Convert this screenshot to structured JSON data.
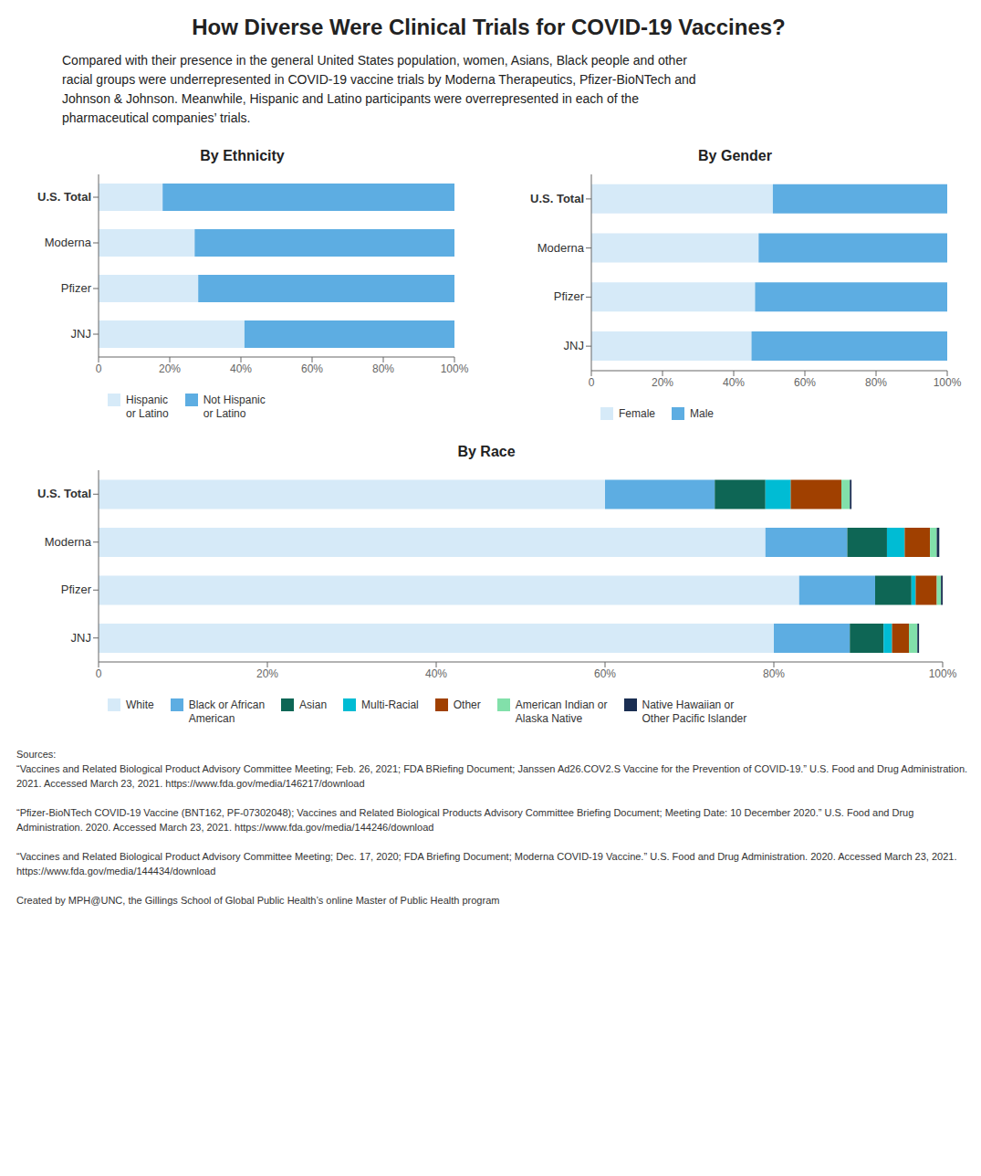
{
  "title": "How Diverse Were Clinical Trials for COVID-19 Vaccines?",
  "subtitle": "Compared with their presence in the general United States population, women, Asians, Black people and other\nracial groups were underrepresented in COVID-19 vaccine trials by Moderna Therapeutics, Pfizer-BioNTech and\nJohnson & Johnson. Meanwhile, Hispanic and Latino participants were overrepresented in each of the\npharmaceutical companies’ trials.",
  "annotations": [
    "Sources:\n“Vaccines and Related Biological Product Advisory Committee Meeting; Feb. 26, 2021; FDA BRiefing Document; Janssen Ad26.COV2.S Vaccine for the Prevention of COVID-19.” U.S. Food and Drug Administration. 2021. Accessed March 23, 2021. https://www.fda.gov/media/146217/download\n\n“Pfizer-BioNTech COVID-19 Vaccine (BNT162, PF-07302048); Vaccines and Related Biological Products Advisory Committee Briefing Document; Meeting Date: 10 December 2020.” U.S. Food and Drug Administration. 2020. Accessed March 23, 2021. https://www.fda.gov/media/144246/download\n\n“Vaccines and Related Biological Product Advisory Committee Meeting; Dec. 17, 2020; FDA Briefing Document; Moderna COVID-19 Vaccine.” U.S. Food and Drug Administration. 2020. Accessed March 23, 2021. https://www.fda.gov/media/144434/download\n\nCreated by MPH@UNC, the Gillings School of Global Public Health’s online Master of Public Health program"
  ],
  "chart_data": [
    {
      "type": "bar",
      "orientation": "horizontal",
      "stacked": true,
      "title": "By Ethnicity",
      "categories": [
        "U.S. Total",
        "Moderna",
        "Pfizer",
        "JNJ"
      ],
      "series": [
        {
          "name": "Hispanic\nor Latino",
          "color": "#d6eaf8",
          "values": [
            0.18,
            0.27,
            0.28,
            0.41
          ]
        },
        {
          "name": "Not Hispanic\nor Latino",
          "color": "#5dade2",
          "values": [
            0.82,
            0.73,
            0.72,
            0.59
          ]
        }
      ],
      "xlim": [
        0,
        1.0
      ],
      "xticks": [
        {
          "value": 0,
          "label": "0"
        },
        {
          "value": 0.2,
          "label": "20%"
        },
        {
          "value": 0.4,
          "label": "40%"
        },
        {
          "value": 0.6,
          "label": "60%"
        },
        {
          "value": 0.8,
          "label": "80%"
        },
        {
          "value": 1.0,
          "label": "100%"
        }
      ],
      "grid": false,
      "legend": "bottom"
    },
    {
      "type": "bar",
      "orientation": "horizontal",
      "stacked": true,
      "title": "By Gender",
      "categories": [
        "U.S. Total",
        "Moderna",
        "Pfizer",
        "JNJ"
      ],
      "series": [
        {
          "name": "Female",
          "color": "#d6eaf8",
          "values": [
            0.51,
            0.47,
            0.46,
            0.45
          ]
        },
        {
          "name": "Male",
          "color": "#5dade2",
          "values": [
            0.49,
            0.53,
            0.54,
            0.55
          ]
        }
      ],
      "xlim": [
        0,
        1.0
      ],
      "xticks": [
        {
          "value": 0,
          "label": "0"
        },
        {
          "value": 0.2,
          "label": "20%"
        },
        {
          "value": 0.4,
          "label": "40%"
        },
        {
          "value": 0.6,
          "label": "60%"
        },
        {
          "value": 0.8,
          "label": "80%"
        },
        {
          "value": 1.0,
          "label": "100%"
        }
      ],
      "grid": false,
      "legend": "bottom"
    },
    {
      "type": "bar",
      "orientation": "horizontal",
      "stacked": true,
      "title": "By Race",
      "categories": [
        "U.S. Total",
        "Moderna",
        "Pfizer",
        "JNJ"
      ],
      "series": [
        {
          "name": "White",
          "color": "#d6eaf8",
          "values": [
            0.6,
            0.79,
            0.83,
            0.8
          ]
        },
        {
          "name": "Black or African\nAmerican",
          "color": "#5dade2",
          "values": [
            0.13,
            0.097,
            0.09,
            0.09
          ]
        },
        {
          "name": "Asian",
          "color": "#0e6655",
          "values": [
            0.06,
            0.047,
            0.043,
            0.04
          ]
        },
        {
          "name": "Multi-Racial",
          "color": "#00bcd4",
          "values": [
            0.03,
            0.021,
            0.005,
            0.01
          ]
        },
        {
          "name": "Other",
          "color": "#a04000",
          "values": [
            0.06,
            0.03,
            0.025,
            0.02
          ]
        },
        {
          "name": "American Indian or\nAlaska Native",
          "color": "#82e0aa",
          "values": [
            0.01,
            0.008,
            0.005,
            0.01
          ]
        },
        {
          "name": "Native Hawaiian or\nOther Pacific Islander",
          "color": "#1a2e52",
          "values": [
            0.002,
            0.003,
            0.002,
            0.002
          ]
        }
      ],
      "xlim": [
        0,
        1.0
      ],
      "xticks": [
        {
          "value": 0,
          "label": "0"
        },
        {
          "value": 0.2,
          "label": "20%"
        },
        {
          "value": 0.4,
          "label": "40%"
        },
        {
          "value": 0.6,
          "label": "60%"
        },
        {
          "value": 0.8,
          "label": "80%"
        },
        {
          "value": 1.0,
          "label": "100%"
        }
      ],
      "grid": false,
      "legend": "bottom"
    }
  ]
}
